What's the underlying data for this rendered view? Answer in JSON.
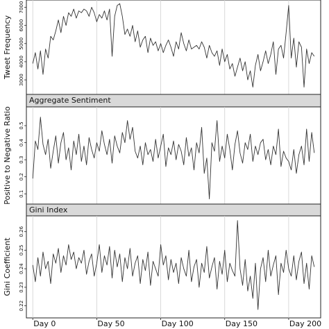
{
  "chart_data": [
    {
      "type": "line",
      "title": "",
      "xlabel": "",
      "ylabel": "Tweet Frequency",
      "xlim": [
        -5,
        225
      ],
      "ylim": [
        2200,
        7400
      ],
      "yticks": [
        3000,
        4000,
        5000,
        6000,
        7000
      ],
      "grid": "vertical",
      "series": [
        {
          "name": "",
          "x": [
            0,
            2,
            4,
            6,
            8,
            10,
            12,
            14,
            16,
            18,
            20,
            22,
            24,
            26,
            28,
            30,
            32,
            34,
            36,
            38,
            40,
            42,
            44,
            46,
            48,
            50,
            52,
            54,
            56,
            58,
            60,
            62,
            64,
            66,
            68,
            70,
            72,
            74,
            76,
            78,
            80,
            82,
            84,
            86,
            88,
            90,
            92,
            94,
            96,
            98,
            100,
            102,
            104,
            106,
            108,
            110,
            112,
            114,
            116,
            118,
            120,
            122,
            124,
            126,
            128,
            130,
            132,
            134,
            136,
            138,
            140,
            142,
            144,
            146,
            148,
            150,
            152,
            154,
            156,
            158,
            160,
            162,
            164,
            166,
            168,
            170,
            172,
            174,
            176,
            178,
            180,
            182,
            184,
            186,
            188,
            190,
            192,
            194,
            196,
            198,
            200,
            202,
            204,
            206,
            208,
            210,
            212,
            214,
            216,
            218,
            220
          ],
          "y": [
            3900,
            4500,
            3600,
            4600,
            3300,
            4700,
            4200,
            5400,
            5200,
            5700,
            6300,
            5600,
            6500,
            6000,
            6700,
            6500,
            6900,
            6400,
            6800,
            6700,
            6900,
            6800,
            6500,
            7000,
            6700,
            6200,
            6600,
            6400,
            6800,
            6300,
            6900,
            4300,
            6500,
            7100,
            7200,
            6500,
            5500,
            5800,
            5400,
            6000,
            5100,
            5700,
            4800,
            5200,
            5400,
            4500,
            5300,
            4900,
            5100,
            4600,
            5000,
            4500,
            4900,
            5200,
            4800,
            4300,
            5100,
            4700,
            5600,
            5000,
            4600,
            5200,
            4700,
            4800,
            4900,
            4700,
            5100,
            4800,
            4200,
            4900,
            4500,
            4300,
            4600,
            3800,
            4700,
            4000,
            4400,
            3600,
            3900,
            3200,
            3700,
            4200,
            3500,
            4000,
            3000,
            3500,
            2600,
            3800,
            4400,
            3500,
            4000,
            4600,
            3900,
            4400,
            5100,
            3300,
            4700,
            4900,
            4200,
            5600,
            7100,
            4200,
            5300,
            3700,
            5100,
            4800,
            2600,
            4700,
            3900,
            4500,
            4300
          ]
        }
      ]
    },
    {
      "type": "line",
      "title": "Aggregate Sentiment",
      "xlabel": "",
      "ylabel": "Positive to Negative Ratio",
      "xlim": [
        -5,
        225
      ],
      "ylim": [
        0.04,
        0.61
      ],
      "yticks": [
        0.1,
        0.2,
        0.3,
        0.4,
        0.5
      ],
      "grid": "vertical",
      "series": [
        {
          "name": "",
          "x": [
            0,
            2,
            4,
            6,
            8,
            10,
            12,
            14,
            16,
            18,
            20,
            22,
            24,
            26,
            28,
            30,
            32,
            34,
            36,
            38,
            40,
            42,
            44,
            46,
            48,
            50,
            52,
            54,
            56,
            58,
            60,
            62,
            64,
            66,
            68,
            70,
            72,
            74,
            76,
            78,
            80,
            82,
            84,
            86,
            88,
            90,
            92,
            94,
            96,
            98,
            100,
            102,
            104,
            106,
            108,
            110,
            112,
            114,
            116,
            118,
            120,
            122,
            124,
            126,
            128,
            130,
            132,
            134,
            136,
            138,
            140,
            142,
            144,
            146,
            148,
            150,
            152,
            154,
            156,
            158,
            160,
            162,
            164,
            166,
            168,
            170,
            172,
            174,
            176,
            178,
            180,
            182,
            184,
            186,
            188,
            190,
            192,
            194,
            196,
            198,
            200,
            202,
            204,
            206,
            208,
            210,
            212,
            214,
            216,
            218,
            220
          ],
          "y": [
            0.19,
            0.41,
            0.36,
            0.55,
            0.39,
            0.33,
            0.42,
            0.25,
            0.35,
            0.44,
            0.28,
            0.4,
            0.46,
            0.3,
            0.37,
            0.24,
            0.41,
            0.33,
            0.45,
            0.29,
            0.38,
            0.27,
            0.43,
            0.36,
            0.31,
            0.4,
            0.35,
            0.47,
            0.39,
            0.33,
            0.42,
            0.28,
            0.44,
            0.38,
            0.34,
            0.46,
            0.4,
            0.53,
            0.42,
            0.49,
            0.35,
            0.31,
            0.38,
            0.27,
            0.4,
            0.33,
            0.36,
            0.29,
            0.42,
            0.31,
            0.38,
            0.45,
            0.26,
            0.37,
            0.33,
            0.41,
            0.3,
            0.39,
            0.35,
            0.27,
            0.43,
            0.32,
            0.37,
            0.24,
            0.4,
            0.34,
            0.49,
            0.22,
            0.31,
            0.07,
            0.4,
            0.35,
            0.53,
            0.29,
            0.38,
            0.31,
            0.45,
            0.36,
            0.24,
            0.39,
            0.47,
            0.34,
            0.28,
            0.4,
            0.36,
            0.45,
            0.29,
            0.38,
            0.33,
            0.4,
            0.42,
            0.3,
            0.36,
            0.27,
            0.38,
            0.33,
            0.48,
            0.26,
            0.35,
            0.31,
            0.29,
            0.24,
            0.36,
            0.22,
            0.33,
            0.38,
            0.27,
            0.48,
            0.29,
            0.46,
            0.34
          ]
        }
      ]
    },
    {
      "type": "line",
      "title": "Gini Index",
      "xlabel": "",
      "ylabel": "Gini Coefficient",
      "xlim": [
        -5,
        225
      ],
      "ylim": [
        0.2135,
        0.2685
      ],
      "yticks": [
        0.22,
        0.23,
        0.24,
        0.25,
        0.26
      ],
      "xticks": [
        0,
        50,
        100,
        150,
        200
      ],
      "xticklabels": [
        "Day 0",
        "Day 50",
        "Day 100",
        "Day 150",
        "Day 200"
      ],
      "grid": "vertical",
      "series": [
        {
          "name": "",
          "x": [
            0,
            2,
            4,
            6,
            8,
            10,
            12,
            14,
            16,
            18,
            20,
            22,
            24,
            26,
            28,
            30,
            32,
            34,
            36,
            38,
            40,
            42,
            44,
            46,
            48,
            50,
            52,
            54,
            56,
            58,
            60,
            62,
            64,
            66,
            68,
            70,
            72,
            74,
            76,
            78,
            80,
            82,
            84,
            86,
            88,
            90,
            92,
            94,
            96,
            98,
            100,
            102,
            104,
            106,
            108,
            110,
            112,
            114,
            116,
            118,
            120,
            122,
            124,
            126,
            128,
            130,
            132,
            134,
            136,
            138,
            140,
            142,
            144,
            146,
            148,
            150,
            152,
            154,
            156,
            158,
            160,
            162,
            164,
            166,
            168,
            170,
            172,
            174,
            176,
            178,
            180,
            182,
            184,
            186,
            188,
            190,
            192,
            194,
            196,
            198,
            200,
            202,
            204,
            206,
            208,
            210,
            212,
            214,
            216,
            218,
            220
          ],
          "y": [
            0.242,
            0.233,
            0.246,
            0.236,
            0.249,
            0.24,
            0.244,
            0.232,
            0.248,
            0.243,
            0.251,
            0.238,
            0.247,
            0.242,
            0.253,
            0.245,
            0.249,
            0.24,
            0.246,
            0.243,
            0.25,
            0.237,
            0.244,
            0.248,
            0.236,
            0.243,
            0.253,
            0.238,
            0.247,
            0.242,
            0.252,
            0.235,
            0.25,
            0.241,
            0.248,
            0.233,
            0.246,
            0.24,
            0.251,
            0.236,
            0.243,
            0.247,
            0.232,
            0.245,
            0.239,
            0.249,
            0.231,
            0.244,
            0.24,
            0.236,
            0.253,
            0.242,
            0.247,
            0.234,
            0.245,
            0.238,
            0.243,
            0.232,
            0.246,
            0.24,
            0.236,
            0.25,
            0.233,
            0.241,
            0.245,
            0.23,
            0.243,
            0.238,
            0.252,
            0.235,
            0.241,
            0.246,
            0.229,
            0.244,
            0.237,
            0.25,
            0.233,
            0.243,
            0.239,
            0.236,
            0.266,
            0.24,
            0.231,
            0.245,
            0.228,
            0.236,
            0.224,
            0.243,
            0.218,
            0.24,
            0.246,
            0.233,
            0.25,
            0.236,
            0.242,
            0.247,
            0.226,
            0.243,
            0.238,
            0.25,
            0.24,
            0.236,
            0.247,
            0.234,
            0.244,
            0.249,
            0.232,
            0.243,
            0.229,
            0.247,
            0.241
          ]
        }
      ]
    }
  ]
}
